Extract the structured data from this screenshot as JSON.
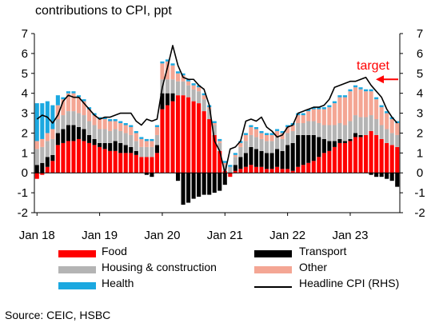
{
  "chart_data": {
    "type": "bar",
    "title": "contributions to CPI, ppt",
    "source": "Source: CEIC, HSBC",
    "left_axis": {
      "ylim": [
        -2,
        7
      ],
      "ticks": [
        "-2",
        "-1",
        "0",
        "1",
        "2",
        "3",
        "4",
        "5",
        "6",
        "7"
      ]
    },
    "right_axis": {
      "ylim": [
        -2,
        7
      ],
      "ticks": [
        "-2",
        "-1",
        "0",
        "1",
        "2",
        "3",
        "4",
        "5",
        "6",
        "7"
      ]
    },
    "x_tick_labels": [
      "Jan 18",
      "Jan 19",
      "Jan 20",
      "Jan 21",
      "Jan 22",
      "Jan 23"
    ],
    "annotation": {
      "text": "target",
      "value": 4.7,
      "color": "#ff0000"
    },
    "colors": {
      "food": "#ff0000",
      "transport": "#000000",
      "housing": "#b4b4b4",
      "other": "#f4a694",
      "health": "#1ba8e0",
      "headline": "#000000"
    },
    "legend": [
      {
        "key": "food",
        "label": "Food"
      },
      {
        "key": "transport",
        "label": "Transport"
      },
      {
        "key": "housing",
        "label": "Housing & construction"
      },
      {
        "key": "other",
        "label": "Other"
      },
      {
        "key": "health",
        "label": "Health"
      },
      {
        "key": "headline",
        "label": "Headline CPI (RHS)"
      }
    ],
    "x": [
      "2018-01",
      "2018-02",
      "2018-03",
      "2018-04",
      "2018-05",
      "2018-06",
      "2018-07",
      "2018-08",
      "2018-09",
      "2018-10",
      "2018-11",
      "2018-12",
      "2019-01",
      "2019-02",
      "2019-03",
      "2019-04",
      "2019-05",
      "2019-06",
      "2019-07",
      "2019-08",
      "2019-09",
      "2019-10",
      "2019-11",
      "2019-12",
      "2020-01",
      "2020-02",
      "2020-03",
      "2020-04",
      "2020-05",
      "2020-06",
      "2020-07",
      "2020-08",
      "2020-09",
      "2020-10",
      "2020-11",
      "2020-12",
      "2021-01",
      "2021-02",
      "2021-03",
      "2021-04",
      "2021-05",
      "2021-06",
      "2021-07",
      "2021-08",
      "2021-09",
      "2021-10",
      "2021-11",
      "2021-12",
      "2022-01",
      "2022-02",
      "2022-03",
      "2022-04",
      "2022-05",
      "2022-06",
      "2022-07",
      "2022-08",
      "2022-09",
      "2022-10",
      "2022-11",
      "2022-12",
      "2023-01",
      "2023-02",
      "2023-03",
      "2023-04",
      "2023-05",
      "2023-06",
      "2023-07",
      "2023-08",
      "2023-09",
      "2023-10"
    ],
    "series": [
      {
        "key": "food",
        "name": "Food",
        "values": [
          -0.3,
          -0.1,
          0.3,
          0.6,
          1.4,
          1.5,
          1.6,
          1.6,
          1.7,
          1.6,
          1.5,
          1.4,
          1.3,
          1.2,
          1.1,
          1.1,
          1.0,
          1.0,
          1.0,
          0.9,
          0.8,
          0.8,
          0.8,
          1.0,
          3.2,
          3.4,
          3.6,
          3.9,
          3.9,
          3.8,
          3.6,
          3.5,
          3.1,
          2.7,
          1.9,
          1.1,
          0.1,
          -0.2,
          0.1,
          0.2,
          0.3,
          0.4,
          0.3,
          0.3,
          0.2,
          0.2,
          0.3,
          0.2,
          0.2,
          0.1,
          0.3,
          0.4,
          0.5,
          0.6,
          0.8,
          1.0,
          1.1,
          1.3,
          1.5,
          1.5,
          1.6,
          1.8,
          1.8,
          1.9,
          2.1,
          1.9,
          1.7,
          1.5,
          1.4,
          1.3
        ]
      },
      {
        "key": "transport",
        "name": "Transport",
        "values": [
          0.4,
          0.5,
          0.5,
          0.3,
          0.6,
          0.7,
          0.8,
          0.8,
          0.6,
          0.6,
          0.4,
          0.3,
          0.2,
          0.3,
          0.4,
          0.5,
          0.5,
          0.4,
          0.3,
          0.2,
          0.0,
          -0.1,
          -0.2,
          0.4,
          0.8,
          0.6,
          0.4,
          -0.4,
          -1.6,
          -1.5,
          -1.3,
          -1.2,
          -1.1,
          -1.1,
          -1.0,
          -0.9,
          -0.6,
          0.0,
          0.3,
          0.6,
          0.7,
          0.9,
          0.9,
          0.8,
          0.8,
          0.8,
          0.9,
          0.9,
          1.2,
          1.4,
          1.6,
          1.5,
          1.4,
          1.3,
          1.0,
          0.7,
          0.5,
          0.3,
          0.2,
          0.1,
          0.1,
          0.2,
          0.1,
          0.0,
          -0.1,
          -0.2,
          -0.2,
          -0.3,
          -0.4,
          -0.7
        ]
      },
      {
        "key": "housing",
        "name": "Housing & construction",
        "values": [
          0.8,
          0.8,
          0.8,
          0.8,
          0.7,
          0.7,
          0.7,
          0.7,
          0.7,
          0.7,
          0.7,
          0.7,
          0.7,
          0.7,
          0.6,
          0.6,
          0.6,
          0.6,
          0.6,
          0.5,
          0.5,
          0.5,
          0.5,
          0.5,
          0.7,
          0.7,
          0.7,
          0.7,
          0.7,
          0.6,
          0.6,
          0.6,
          0.6,
          0.5,
          0.5,
          0.4,
          0.3,
          0.3,
          0.4,
          0.5,
          0.6,
          0.6,
          0.6,
          0.6,
          0.6,
          0.6,
          0.6,
          0.6,
          0.6,
          0.6,
          0.6,
          0.6,
          0.7,
          0.7,
          0.7,
          0.7,
          0.8,
          0.8,
          0.8,
          0.8,
          0.9,
          0.9,
          0.9,
          0.9,
          0.8,
          0.8,
          0.7,
          0.7,
          0.6,
          0.6
        ]
      },
      {
        "key": "other",
        "name": "Other",
        "values": [
          0.4,
          0.4,
          0.4,
          0.5,
          0.7,
          0.8,
          0.9,
          0.9,
          0.8,
          0.7,
          0.6,
          0.5,
          0.5,
          0.5,
          0.5,
          0.4,
          0.4,
          0.4,
          0.4,
          0.4,
          0.4,
          0.3,
          0.3,
          0.4,
          0.8,
          0.9,
          0.7,
          0.4,
          0.3,
          0.2,
          0.2,
          0.2,
          0.2,
          0.1,
          0.1,
          0.1,
          0.1,
          0.0,
          0.1,
          0.2,
          0.3,
          0.4,
          0.4,
          0.3,
          0.3,
          0.3,
          0.3,
          0.3,
          0.3,
          0.3,
          0.4,
          0.4,
          0.5,
          0.6,
          0.7,
          0.8,
          0.9,
          1.1,
          1.3,
          1.4,
          1.5,
          1.4,
          1.4,
          1.3,
          1.2,
          1.0,
          0.9,
          0.8,
          0.7,
          0.6
        ]
      },
      {
        "key": "health",
        "name": "Health",
        "values": [
          1.9,
          1.8,
          1.6,
          1.2,
          0.5,
          0.1,
          0.1,
          0.1,
          0.1,
          0.1,
          0.1,
          0.1,
          0.1,
          0.1,
          0.1,
          0.1,
          0.1,
          0.1,
          0.1,
          0.1,
          0.1,
          0.1,
          0.1,
          0.1,
          0.1,
          0.1,
          0.1,
          0.1,
          0.1,
          0.1,
          0.1,
          0.1,
          0.1,
          0.1,
          0.1,
          0.1,
          0.1,
          0.1,
          0.1,
          0.1,
          0.1,
          0.1,
          0.1,
          0.1,
          0.1,
          0.1,
          0.1,
          0.1,
          0.1,
          0.1,
          0.1,
          0.1,
          0.1,
          0.1,
          0.1,
          0.1,
          0.1,
          0.1,
          0.1,
          0.1,
          0.1,
          0.1,
          0.1,
          0.1,
          0.1,
          0.1,
          0.1,
          0.1,
          0.1,
          0.1
        ]
      },
      {
        "key": "headline",
        "name": "Headline CPI (RHS)",
        "type": "line",
        "values": [
          2.7,
          2.9,
          2.8,
          2.5,
          2.9,
          3.6,
          3.9,
          3.8,
          3.8,
          3.5,
          3.2,
          2.9,
          2.7,
          2.8,
          2.8,
          2.9,
          3.0,
          3.0,
          3.0,
          2.6,
          2.4,
          2.7,
          2.6,
          2.7,
          4.3,
          5.3,
          6.4,
          5.4,
          4.8,
          4.7,
          4.7,
          4.4,
          4.2,
          3.4,
          1.6,
          1.1,
          0.0,
          1.2,
          1.3,
          1.6,
          2.6,
          2.7,
          2.6,
          2.8,
          2.3,
          2.1,
          1.8,
          1.9,
          2.3,
          2.4,
          3.0,
          3.1,
          3.2,
          3.3,
          3.3,
          3.4,
          3.7,
          4.3,
          4.4,
          4.5,
          4.6,
          4.6,
          4.7,
          4.8,
          4.4,
          4.1,
          3.8,
          3.2,
          2.8,
          2.5
        ]
      }
    ]
  }
}
